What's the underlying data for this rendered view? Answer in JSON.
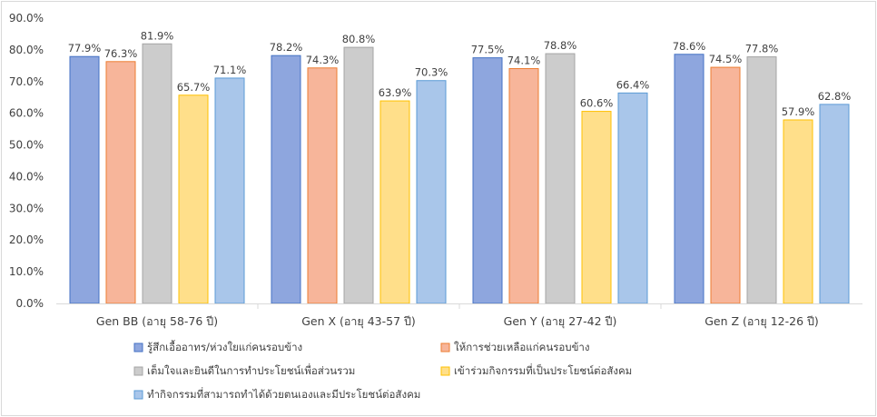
{
  "chart_data": {
    "type": "bar",
    "categories": [
      "Gen BB (อายุ 58-76 ปี)",
      "Gen X (อายุ 43-57 ปี)",
      "Gen Y (อายุ 27-42 ปี)",
      "Gen Z (อายุ 12-26 ปี)"
    ],
    "series": [
      {
        "name": "รู้สึกเอื้ออาทร/ห่วงใยแก่คนรอบข้าง",
        "values": [
          77.9,
          78.2,
          77.5,
          78.6
        ],
        "color": "#8ea6de",
        "stroke": "#4472c4"
      },
      {
        "name": "ให้การช่วยเหลือแก่คนรอบข้าง",
        "values": [
          76.3,
          74.3,
          74.1,
          74.5
        ],
        "color": "#f7b59a",
        "stroke": "#ed7d31"
      },
      {
        "name": "เต็มใจและยินดีในการทำประโยชน์เพื่อส่วนรวม",
        "values": [
          81.9,
          80.8,
          78.8,
          77.8
        ],
        "color": "#cccccc",
        "stroke": "#a5a5a5"
      },
      {
        "name": "เข้าร่วมกิจกรรมที่เป็นประโยชน์ต่อสังคม",
        "values": [
          65.7,
          63.9,
          60.6,
          57.9
        ],
        "color": "#ffdf8a",
        "stroke": "#ffc000"
      },
      {
        "name": "ทำกิจกรรมที่สามารถทำได้ด้วยตนเองและมีประโยชน์ต่อสังคม",
        "values": [
          71.1,
          70.3,
          66.4,
          62.8
        ],
        "color": "#a9c6ea",
        "stroke": "#5b9bd5"
      }
    ],
    "data_labels": [
      [
        "77.9%",
        "78.2%",
        "77.5%",
        "78.6%"
      ],
      [
        "76.3%",
        "74.3%",
        "74.1%",
        "74.5%"
      ],
      [
        "81.9%",
        "80.8%",
        "78.8%",
        "77.8%"
      ],
      [
        "65.7%",
        "63.9%",
        "60.6%",
        "57.9%"
      ],
      [
        "71.1%",
        "70.3%",
        "66.4%",
        "62.8%"
      ]
    ],
    "y_ticks": [
      "0.0%",
      "10.0%",
      "20.0%",
      "30.0%",
      "40.0%",
      "50.0%",
      "60.0%",
      "70.0%",
      "80.0%",
      "90.0%"
    ],
    "ylim": [
      0,
      90
    ],
    "grid": false,
    "legend_position": "bottom",
    "title": "",
    "xlabel": "",
    "ylabel": ""
  }
}
